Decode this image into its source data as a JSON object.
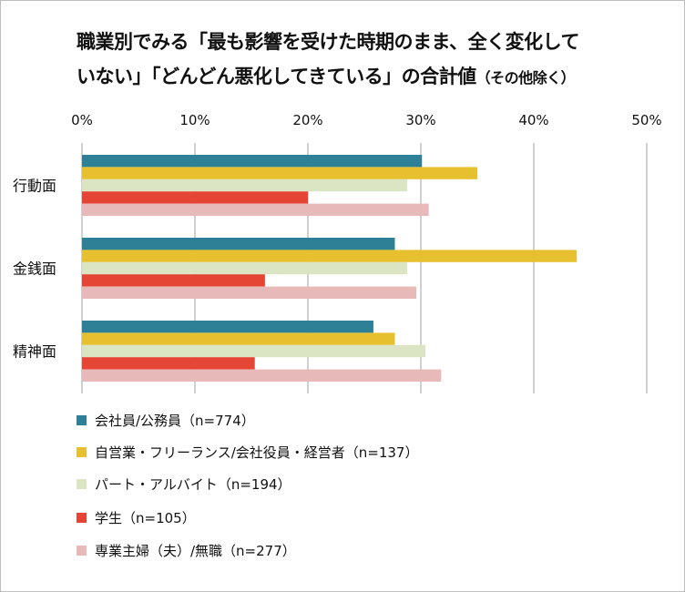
{
  "chart_data": {
    "type": "bar",
    "orientation": "horizontal",
    "title_line1": "職業別でみる「最も影響を受けた時期のまま、全く変化して",
    "title_line2": "いない」「どんどん悪化してきている」の合計値",
    "title_note": "（その他除く）",
    "categories": [
      "行動面",
      "金銭面",
      "精神面"
    ],
    "xlim": [
      0,
      50
    ],
    "xticks": [
      "0%",
      "10%",
      "20%",
      "30%",
      "40%",
      "50%"
    ],
    "xtick_values": [
      0,
      10,
      20,
      30,
      40,
      50
    ],
    "grid": true,
    "legend_position": "bottom",
    "series": [
      {
        "name": "会社員/公務員（n=774）",
        "color": "#2e8096",
        "values": [
          30.1,
          27.7,
          25.8
        ]
      },
      {
        "name": "自営業・フリーランス/会社役員・経営者（n=137）",
        "color": "#e6c02e",
        "values": [
          35.0,
          43.8,
          27.7
        ]
      },
      {
        "name": "パート・アルバイト（n=194）",
        "color": "#dbe4c3",
        "values": [
          28.8,
          28.8,
          30.4
        ]
      },
      {
        "name": "学生（n=105）",
        "color": "#e54535",
        "values": [
          20.0,
          16.2,
          15.3
        ]
      },
      {
        "name": "専業主婦（夫）/無職（n=277）",
        "color": "#e8b9b9",
        "values": [
          30.7,
          29.6,
          31.8
        ]
      }
    ]
  }
}
